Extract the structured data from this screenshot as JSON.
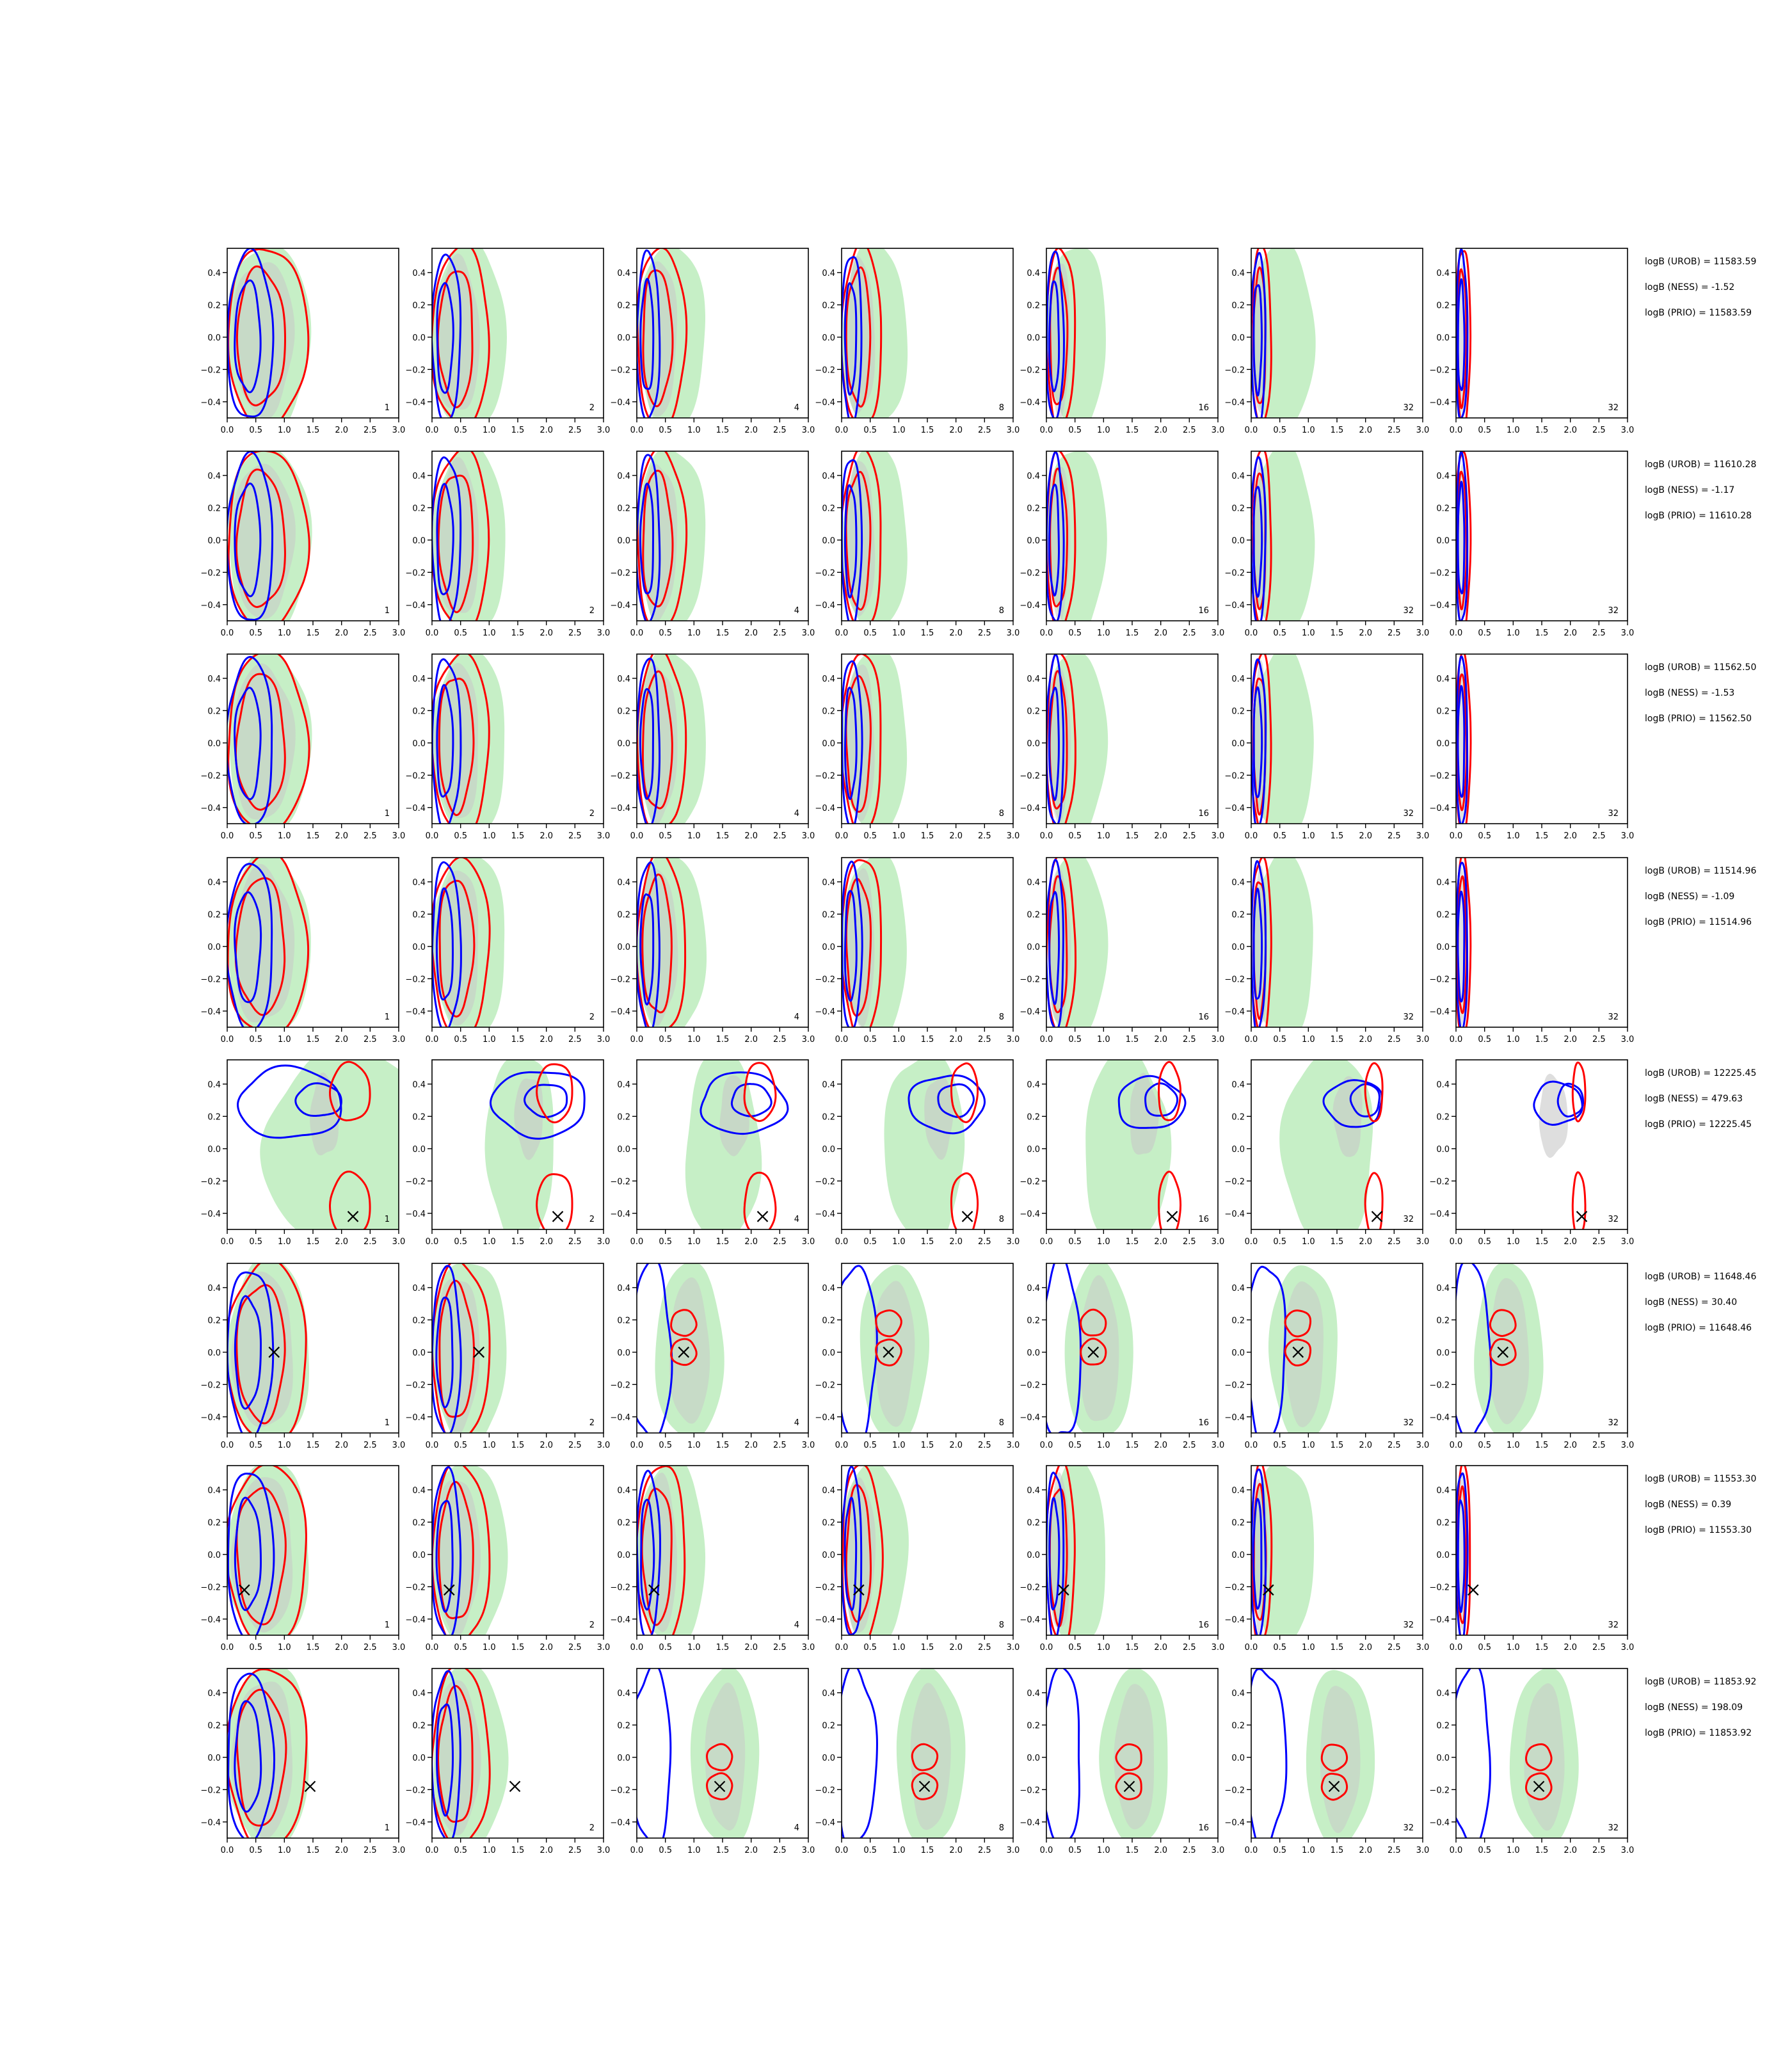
{
  "colors": {
    "green": "#c6efc6",
    "grey": "#c8c8c8",
    "blue": "#0000ff",
    "red": "#ff0000",
    "cross": "#000000"
  },
  "axes": {
    "xlim": [
      0,
      3
    ],
    "ylim": [
      -0.5,
      0.5
    ],
    "xticks": [
      "0.0",
      "0.5",
      "1.0",
      "1.5",
      "2.0",
      "2.5",
      "3.0"
    ],
    "yticks": [
      "−0.4",
      "−0.2",
      "0.0",
      "0.2",
      "0.4"
    ],
    "yvals": [
      -0.4,
      -0.2,
      0.0,
      0.2,
      0.4
    ]
  },
  "panel_labels": [
    "1",
    "2",
    "4",
    "8",
    "16",
    "32",
    "32"
  ],
  "chart_data": {
    "type": "contour",
    "legend": "none",
    "grid": false,
    "rows": [
      {
        "stats": [
          "logB (UROB) = 11583.59",
          "logB (NESS) = -1.52",
          "logB (PRIO) = 11583.59"
        ],
        "true": null
      },
      {
        "stats": [
          "logB (UROB) = 11610.28",
          "logB (NESS) = -1.17",
          "logB (PRIO) = 11610.28"
        ],
        "true": null
      },
      {
        "stats": [
          "logB (UROB) = 11562.50",
          "logB (NESS) = -1.53",
          "logB (PRIO) = 11562.50"
        ],
        "true": null
      },
      {
        "stats": [
          "logB (UROB) = 11514.96",
          "logB (NESS) = -1.09",
          "logB (PRIO) = 11514.96"
        ],
        "true": null
      },
      {
        "stats": [
          "logB (UROB) = 12225.45",
          "logB (NESS) = 479.63",
          "logB (PRIO) = 12225.45"
        ],
        "true": [
          2.2,
          -0.42
        ]
      },
      {
        "stats": [
          "logB (UROB) = 11648.46",
          "logB (NESS) = 30.40",
          "logB (PRIO) = 11648.46"
        ],
        "true": [
          0.82,
          0.0
        ]
      },
      {
        "stats": [
          "logB (UROB) = 11553.30",
          "logB (NESS) = 0.39",
          "logB (PRIO) = 11553.30"
        ],
        "true": [
          0.3,
          -0.22
        ]
      },
      {
        "stats": [
          "logB (UROB) = 11853.92",
          "logB (NESS) = 198.09",
          "logB (PRIO) = 11853.92"
        ],
        "true": [
          1.45,
          -0.18
        ]
      }
    ]
  }
}
